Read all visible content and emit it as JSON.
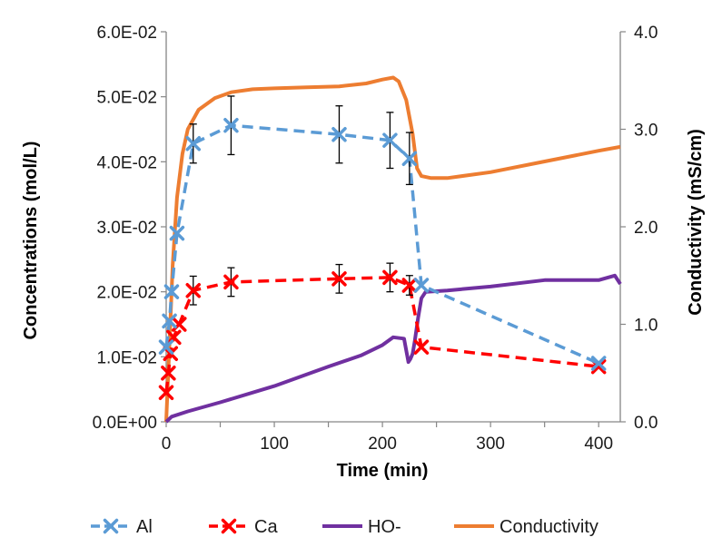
{
  "chart_data": {
    "type": "line",
    "xlabel": "Time (min)",
    "ylabel_left": "Concentrations (mol/L)",
    "ylabel_right": "Conductivity (mS/cm)",
    "xlim": [
      0,
      420
    ],
    "ylim_left": [
      0,
      0.06
    ],
    "ylim_right": [
      0,
      4
    ],
    "x_ticks": [
      0,
      100,
      200,
      300,
      400
    ],
    "x_tick_labels": [
      "0",
      "100",
      "200",
      "300",
      "400"
    ],
    "y_left_ticks": [
      0,
      0.01,
      0.02,
      0.03,
      0.04,
      0.05,
      0.06
    ],
    "y_left_tick_labels": [
      "0.0E+00",
      "1.0E-02",
      "2.0E-02",
      "3.0E-02",
      "4.0E-02",
      "5.0E-02",
      "6.0E-02"
    ],
    "y_right_ticks": [
      0,
      1,
      2,
      3,
      4
    ],
    "y_right_tick_labels": [
      "0.0",
      "1.0",
      "2.0",
      "3.0",
      "4.0"
    ],
    "grid": false,
    "legend_position": "bottom",
    "series": [
      {
        "name": "Al",
        "axis": "left",
        "style": "dashed-marker-x",
        "color": "#5B9BD5",
        "x": [
          0,
          3,
          5,
          10,
          25,
          60,
          160,
          207,
          225,
          236,
          400
        ],
        "y": [
          0.0115,
          0.0155,
          0.02,
          0.029,
          0.0428,
          0.0456,
          0.0442,
          0.0433,
          0.0405,
          0.021,
          0.009
        ],
        "error": [
          0,
          0,
          0,
          0,
          0.003,
          0.0045,
          0.0044,
          0.0043,
          0.004,
          0,
          0
        ]
      },
      {
        "name": "Ca",
        "axis": "left",
        "style": "dashed-marker-x",
        "color": "#FF0000",
        "x": [
          0,
          2,
          4,
          7,
          12,
          25,
          60,
          160,
          207,
          225,
          236,
          400
        ],
        "y": [
          0.0045,
          0.0075,
          0.0105,
          0.013,
          0.015,
          0.0202,
          0.0215,
          0.022,
          0.0222,
          0.021,
          0.0115,
          0.0085
        ],
        "error": [
          0,
          0,
          0,
          0,
          0,
          0.0022,
          0.0022,
          0.0022,
          0.0022,
          0.0015,
          0,
          0
        ]
      },
      {
        "name": "HO-",
        "axis": "left",
        "style": "solid",
        "color": "#7030A0",
        "x": [
          0,
          5,
          20,
          50,
          100,
          150,
          180,
          200,
          210,
          220,
          224,
          226,
          228,
          230,
          233,
          236,
          240,
          260,
          300,
          350,
          400,
          415,
          420
        ],
        "y": [
          0,
          0.0008,
          0.0016,
          0.003,
          0.0055,
          0.0085,
          0.0102,
          0.0118,
          0.013,
          0.0128,
          0.0092,
          0.0097,
          0.0105,
          0.0125,
          0.016,
          0.019,
          0.02,
          0.0202,
          0.0208,
          0.0218,
          0.0218,
          0.0225,
          0.0212
        ]
      },
      {
        "name": "Conductivity",
        "axis": "right",
        "style": "solid",
        "color": "#ED7D31",
        "x": [
          0,
          3,
          6,
          10,
          15,
          20,
          30,
          45,
          60,
          80,
          100,
          130,
          160,
          185,
          200,
          210,
          215,
          222,
          228,
          232,
          236,
          245,
          260,
          300,
          350,
          400,
          420
        ],
        "y": [
          0,
          0.8,
          1.6,
          2.3,
          2.75,
          3.0,
          3.2,
          3.32,
          3.38,
          3.41,
          3.42,
          3.43,
          3.44,
          3.47,
          3.51,
          3.53,
          3.49,
          3.3,
          2.95,
          2.6,
          2.52,
          2.5,
          2.5,
          2.56,
          2.67,
          2.78,
          2.82
        ]
      }
    ]
  }
}
